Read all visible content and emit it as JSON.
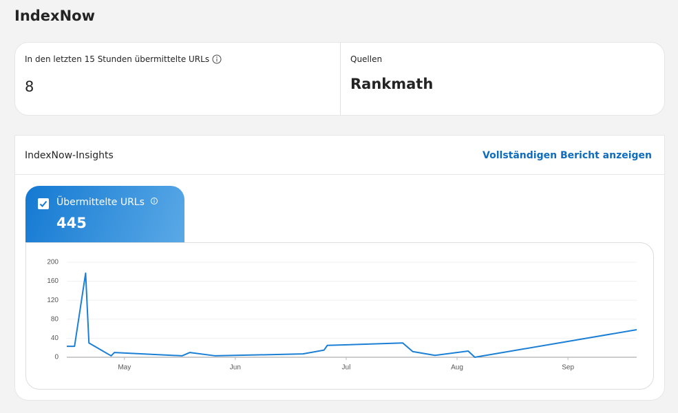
{
  "header": {
    "title": "IndexNow"
  },
  "stats": [
    {
      "label": "In den letzten 15 Stunden übermittelte URLs",
      "value": 8
    },
    {
      "label": "Quellen",
      "value": "Rankmath"
    }
  ],
  "insights": {
    "title": "IndexNow-Insights",
    "link": "Vollständigen Bericht anzeigen",
    "metric": {
      "label": "Übermittelte URLs",
      "value": 445
    }
  },
  "chart_data": {
    "type": "line",
    "x": [
      4.48,
      4.55,
      4.65,
      4.68,
      4.88,
      4.91,
      5.52,
      5.59,
      5.82,
      6.61,
      6.8,
      6.83,
      7.51,
      7.6,
      7.8,
      8.1,
      8.16,
      9.62
    ],
    "series": [
      {
        "color": "#1a7fd4",
        "values": [
          23,
          23,
          177,
          30,
          3,
          10,
          3,
          10,
          3,
          7,
          15,
          25,
          30,
          12,
          4,
          13,
          0,
          58
        ]
      }
    ],
    "xlim": [
      4.48,
      9.62
    ],
    "xticks": [
      {
        "value": 5,
        "label": "May"
      },
      {
        "value": 6,
        "label": "Jun"
      },
      {
        "value": 7,
        "label": "Jul"
      },
      {
        "value": 8,
        "label": "Aug"
      },
      {
        "value": 9,
        "label": "Sep"
      }
    ],
    "ylim": [
      0,
      200
    ],
    "yticks": [
      0,
      40,
      80,
      120,
      160,
      200
    ],
    "grid": true
  }
}
